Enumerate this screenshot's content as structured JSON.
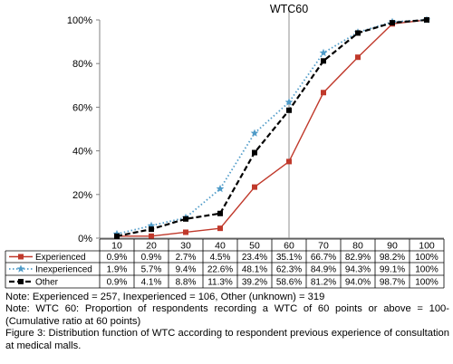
{
  "chart_data": {
    "type": "line",
    "title": "",
    "xlabel": "",
    "ylabel": "",
    "x": [
      10,
      20,
      30,
      40,
      50,
      60,
      70,
      80,
      90,
      100
    ],
    "ylim": [
      0,
      100
    ],
    "y_ticks": [
      "0%",
      "20%",
      "40%",
      "60%",
      "80%",
      "100%"
    ],
    "grid": false,
    "reference_line": {
      "x": 60,
      "label": "WTC60"
    },
    "series": [
      {
        "name": "Experienced",
        "values": [
          0.9,
          0.9,
          2.7,
          4.5,
          23.4,
          35.1,
          66.7,
          82.9,
          98.2,
          100
        ],
        "labels": [
          "0.9%",
          "0.9%",
          "2.7%",
          "4.5%",
          "23.4%",
          "35.1%",
          "66.7%",
          "82.9%",
          "98.2%",
          "100%"
        ],
        "color": "#c0392b",
        "marker": "square",
        "line_style": "solid"
      },
      {
        "name": "Inexperienced",
        "values": [
          1.9,
          5.7,
          9.4,
          22.6,
          48.1,
          62.3,
          84.9,
          94.3,
          99.1,
          100
        ],
        "labels": [
          "1.9%",
          "5.7%",
          "9.4%",
          "22.6%",
          "48.1%",
          "62.3%",
          "84.9%",
          "94.3%",
          "99.1%",
          "100%"
        ],
        "color": "#4f9bc8",
        "marker": "star",
        "line_style": "dotted"
      },
      {
        "name": "Other",
        "values": [
          0.9,
          4.1,
          8.8,
          11.3,
          39.2,
          58.6,
          81.2,
          94.0,
          98.7,
          100
        ],
        "labels": [
          "0.9%",
          "4.1%",
          "8.8%",
          "11.3%",
          "39.2%",
          "58.6%",
          "81.2%",
          "94.0%",
          "98.7%",
          "100%"
        ],
        "color": "#000000",
        "marker": "square",
        "line_style": "dashed"
      }
    ]
  },
  "notes": {
    "note1": "Note: Experienced = 257, Inexperienced = 106, Other (unknown) = 319",
    "note2": "Note: WTC 60: Proportion of respondents recording a WTC of 60 points or above = 100-(Cumulative ratio at 60 points)",
    "caption": "Figure 3: Distribution function of WTC according to respondent previous experience of consultation at medical malls."
  }
}
